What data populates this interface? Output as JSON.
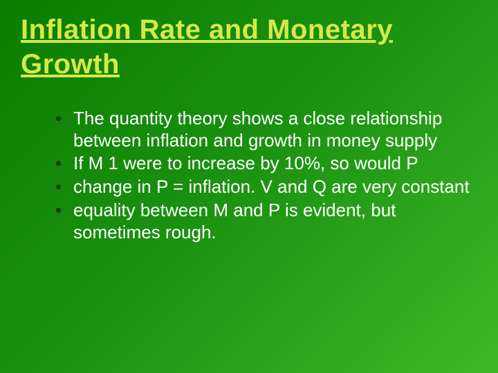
{
  "slide": {
    "title": "Inflation Rate and Monetary Growth",
    "title_color": "#d6e84a",
    "title_fontsize": 40,
    "background_gradient_start": "#0a7d00",
    "background_gradient_mid": "#1a9010",
    "background_gradient_end": "#3eb828",
    "body_color": "#ffffff",
    "body_fontsize": 26,
    "bullet_marker_color": "#0b3d00",
    "bullets": {
      "0": "The quantity theory shows a close relationship between inflation and growth in money supply",
      "1": "If M 1 were to increase by 10%, so would P",
      "2": "change in P = inflation. V and Q are very constant",
      "3": "equality between M and P is evident, but sometimes rough."
    }
  }
}
